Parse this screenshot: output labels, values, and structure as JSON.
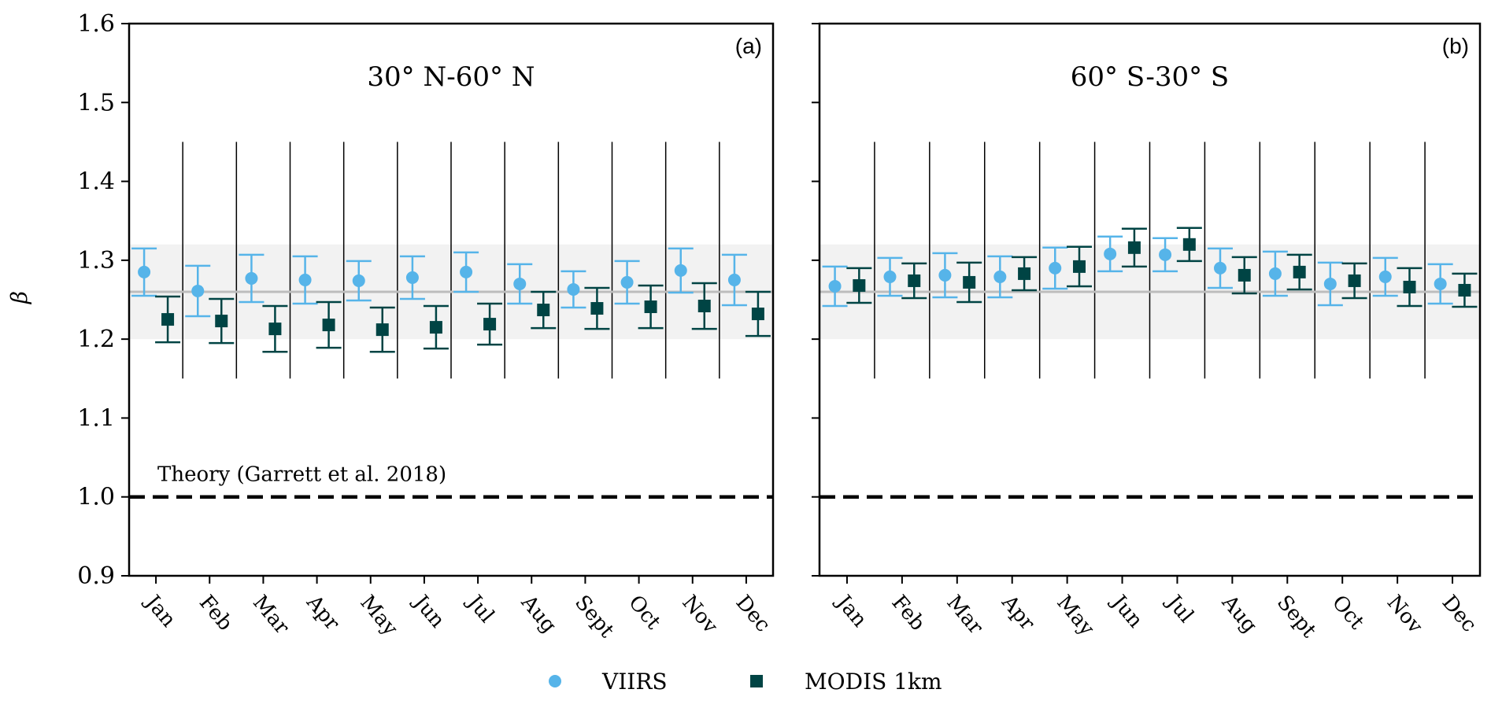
{
  "figure": {
    "ylabel": "β",
    "legend": [
      {
        "name": "VIIRS",
        "color": "#56b4e9",
        "marker": "circle"
      },
      {
        "name": "MODIS 1km",
        "color": "#004444",
        "marker": "square"
      }
    ]
  },
  "chart_data": [
    {
      "type": "scatter",
      "panel": "(a)",
      "title": "30° N-60° N",
      "ylim": [
        0.9,
        1.6
      ],
      "yticks": [
        "0.9",
        "1.0",
        "1.1",
        "1.2",
        "1.3",
        "1.4",
        "1.5",
        "1.6"
      ],
      "categories": [
        "Jan",
        "Feb",
        "Mar",
        "Apr",
        "May",
        "Jun",
        "Jul",
        "Aug",
        "Sept",
        "Oct",
        "Nov",
        "Dec"
      ],
      "band": [
        1.2,
        1.32
      ],
      "reference_line": 1.26,
      "theory_line": 1.0,
      "theory_label": "Theory (Garrett et al. 2018)",
      "series": [
        {
          "name": "VIIRS",
          "values": [
            1.285,
            1.261,
            1.277,
            1.275,
            1.274,
            1.278,
            1.285,
            1.27,
            1.263,
            1.272,
            1.287,
            1.275
          ],
          "err": [
            0.03,
            0.032,
            0.03,
            0.03,
            0.025,
            0.027,
            0.025,
            0.025,
            0.023,
            0.027,
            0.028,
            0.032
          ]
        },
        {
          "name": "MODIS 1km",
          "values": [
            1.225,
            1.223,
            1.213,
            1.218,
            1.212,
            1.215,
            1.219,
            1.237,
            1.239,
            1.241,
            1.242,
            1.232
          ],
          "err": [
            0.029,
            0.028,
            0.029,
            0.029,
            0.028,
            0.027,
            0.026,
            0.023,
            0.026,
            0.027,
            0.029,
            0.028
          ]
        }
      ]
    },
    {
      "type": "scatter",
      "panel": "(b)",
      "title": "60° S-30° S",
      "ylim": [
        0.9,
        1.6
      ],
      "yticks": [
        "0.9",
        "1.0",
        "1.1",
        "1.2",
        "1.3",
        "1.4",
        "1.5",
        "1.6"
      ],
      "categories": [
        "Jan",
        "Feb",
        "Mar",
        "Apr",
        "May",
        "Jun",
        "Jul",
        "Aug",
        "Sept",
        "Oct",
        "Nov",
        "Dec"
      ],
      "band": [
        1.2,
        1.32
      ],
      "reference_line": 1.26,
      "theory_line": 1.0,
      "series": [
        {
          "name": "VIIRS",
          "values": [
            1.267,
            1.279,
            1.281,
            1.279,
            1.29,
            1.308,
            1.307,
            1.29,
            1.283,
            1.27,
            1.279,
            1.27
          ],
          "err": [
            0.025,
            0.024,
            0.028,
            0.026,
            0.026,
            0.022,
            0.021,
            0.025,
            0.028,
            0.027,
            0.024,
            0.025
          ]
        },
        {
          "name": "MODIS 1km",
          "values": [
            1.268,
            1.274,
            1.272,
            1.283,
            1.292,
            1.316,
            1.32,
            1.281,
            1.285,
            1.274,
            1.266,
            1.262
          ],
          "err": [
            0.022,
            0.022,
            0.025,
            0.021,
            0.025,
            0.024,
            0.021,
            0.023,
            0.022,
            0.022,
            0.024,
            0.021
          ]
        }
      ]
    }
  ]
}
